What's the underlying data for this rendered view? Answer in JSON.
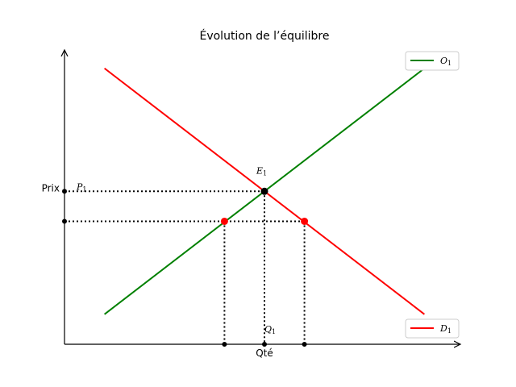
{
  "chart_data": {
    "type": "line",
    "title": "Évolution de l’équilibre",
    "xlabel": "Qté",
    "ylabel": "Prix",
    "xlim": [
      0,
      10
    ],
    "ylim": [
      0,
      10
    ],
    "grid": false,
    "series": [
      {
        "name": "O",
        "subscript": "1",
        "color": "#008000",
        "x": [
          1,
          9
        ],
        "y": [
          1,
          9.2
        ]
      },
      {
        "name": "D",
        "subscript": "1",
        "color": "#ff0000",
        "x": [
          1,
          9
        ],
        "y": [
          9.2,
          1
        ]
      }
    ],
    "equilibrium": {
      "label": "E",
      "subscript": "1",
      "x": 5,
      "y": 5.1,
      "color": "#000000"
    },
    "secondary_points": [
      {
        "x": 4,
        "y": 4.1,
        "color": "#ff0000"
      },
      {
        "x": 6,
        "y": 4.1,
        "color": "#ff0000"
      }
    ],
    "axis_markers": {
      "P": {
        "label": "P",
        "subscript": "1"
      },
      "Q": {
        "label": "Q",
        "subscript": "1"
      }
    },
    "legend": [
      {
        "series": "O",
        "position": "top-right"
      },
      {
        "series": "D",
        "position": "bottom-right"
      }
    ]
  }
}
